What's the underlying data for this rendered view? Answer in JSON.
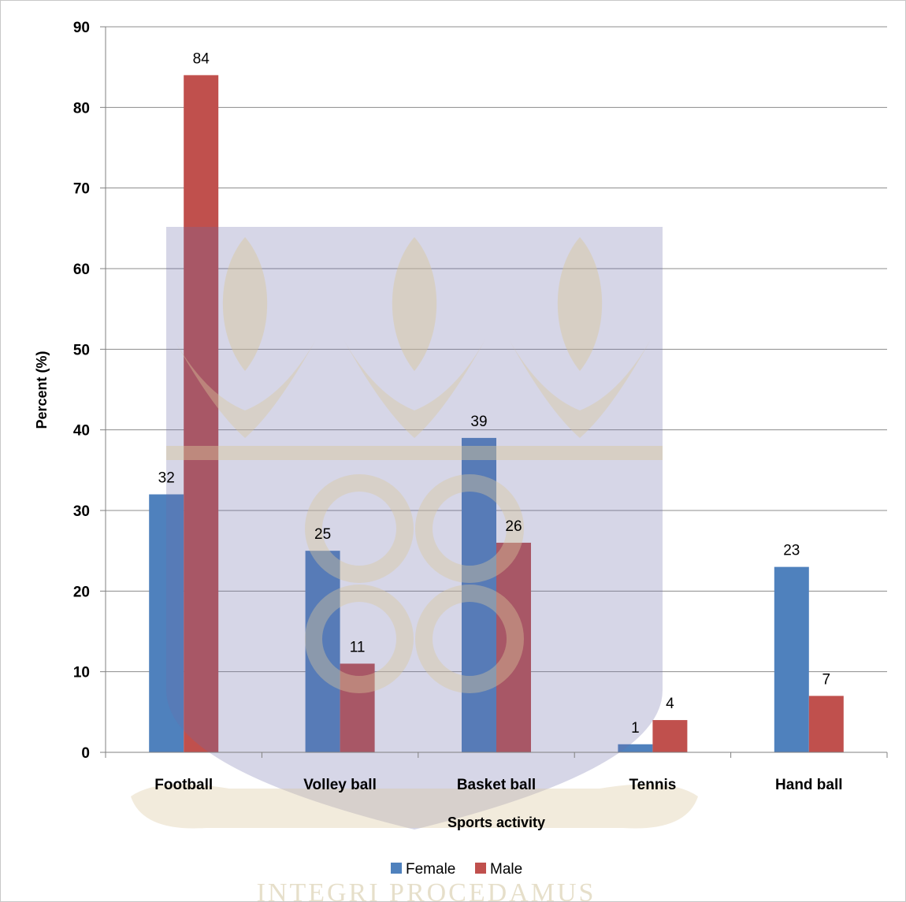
{
  "chart_data": {
    "type": "bar",
    "categories": [
      "Football",
      "Volley ball",
      "Basket ball",
      "Tennis",
      "Hand ball"
    ],
    "series": [
      {
        "name": "Female",
        "values": [
          32,
          25,
          39,
          1,
          23
        ],
        "color": "#4f81bd"
      },
      {
        "name": "Male",
        "values": [
          84,
          11,
          26,
          4,
          7
        ],
        "color": "#c0504d"
      }
    ],
    "xlabel": "Sports activity",
    "ylabel": "Percent (%)",
    "ylim": [
      0,
      90
    ],
    "yticks": [
      0,
      10,
      20,
      30,
      40,
      50,
      60,
      70,
      80,
      90
    ],
    "grid": true,
    "legend_position": "bottom",
    "data_labels": true
  },
  "watermark": {
    "text": "INTEGRI PROCEDAMUS",
    "description_icon": "university-crest-watermark"
  }
}
